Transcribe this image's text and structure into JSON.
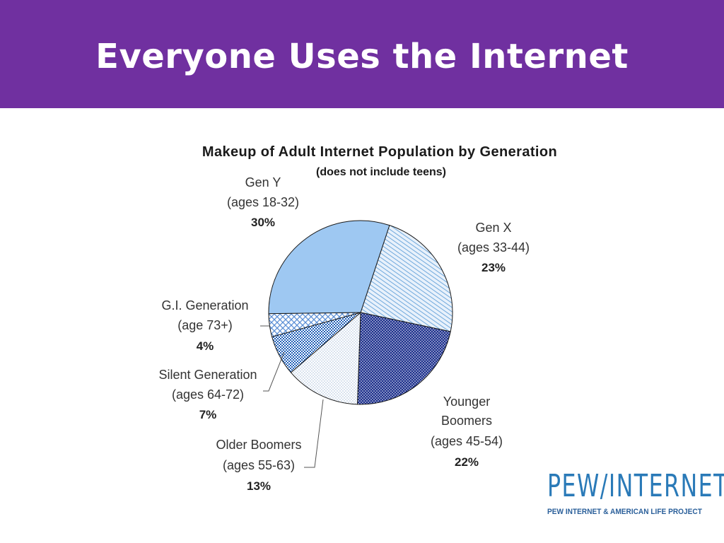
{
  "slide": {
    "title": "Everyone Uses the Internet"
  },
  "chart_data": {
    "type": "pie",
    "title": "Makeup of Adult Internet Population by Generation",
    "subtitle": "(does not include teens)",
    "slices": [
      {
        "name": "Gen Y",
        "ages": "(ages 18-32)",
        "value": 30,
        "label": "30%",
        "color": "#9ec8f2",
        "pattern": "solid"
      },
      {
        "name": "Gen X",
        "ages": "(ages 33-44)",
        "value": 23,
        "label": "23%",
        "color": "#6fa8dc",
        "pattern": "diagonal-hatch"
      },
      {
        "name": "Younger Boomers",
        "name_lines": [
          "Younger",
          "Boomers"
        ],
        "ages": "(ages 45-54)",
        "value": 22,
        "label": "22%",
        "color": "#1c2f8c",
        "pattern": "dense-dots"
      },
      {
        "name": "Older Boomers",
        "ages": "(ages 55-63)",
        "value": 13,
        "label": "13%",
        "color": "#9fb7d6",
        "pattern": "light-dots"
      },
      {
        "name": "Silent Generation",
        "ages": "(ages 64-72)",
        "value": 7,
        "label": "7%",
        "color": "#1f5fb8",
        "pattern": "checker"
      },
      {
        "name": "G.I. Generation",
        "ages": "(age 73+)",
        "value": 4,
        "label": "4%",
        "color": "#5b8fd6",
        "pattern": "crosshatch"
      }
    ]
  },
  "logo": {
    "main": "PEW/INTERNET",
    "sub": "PEW INTERNET & AMERICAN LIFE PROJECT"
  }
}
